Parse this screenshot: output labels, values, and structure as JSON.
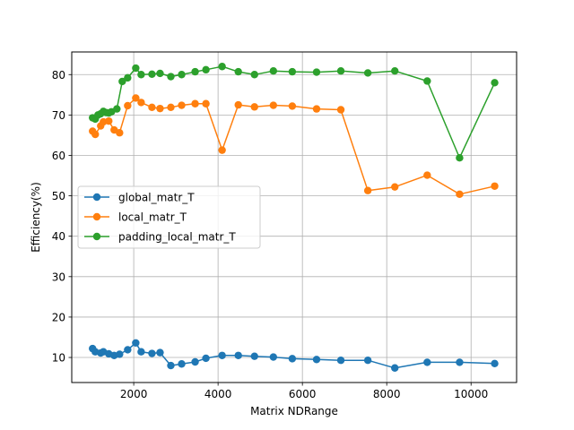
{
  "chart_data": {
    "type": "line",
    "xlabel": "Matrix NDRange",
    "ylabel": "Efficiency(%)",
    "xlim": [
      530,
      11080
    ],
    "ylim": [
      3.8,
      85.6
    ],
    "xticks": [
      2000,
      4000,
      6000,
      8000,
      10000
    ],
    "yticks": [
      10,
      20,
      30,
      40,
      50,
      60,
      70,
      80
    ],
    "grid": true,
    "legend_position": "center-left",
    "x": [
      1024,
      1088,
      1152,
      1216,
      1280,
      1344,
      1408,
      1472,
      1536,
      1600,
      1664,
      1728,
      1856,
      2048,
      2176,
      2432,
      2624,
      2880,
      3136,
      3456,
      3712,
      4096,
      4480,
      4864,
      5312,
      5760,
      6336,
      6912,
      7552,
      8192,
      8960,
      9728,
      10560
    ],
    "series": [
      {
        "name": "global_matr_T",
        "color": "#1f77b4",
        "points": [
          [
            1024,
            12.2
          ],
          [
            1088,
            11.4
          ],
          [
            1216,
            11.1
          ],
          [
            1280,
            11.4
          ],
          [
            1408,
            10.9
          ],
          [
            1536,
            10.5
          ],
          [
            1664,
            10.8
          ],
          [
            1856,
            11.9
          ],
          [
            2048,
            13.6
          ],
          [
            2176,
            11.4
          ],
          [
            2432,
            11.0
          ],
          [
            2624,
            11.2
          ],
          [
            2880,
            8.0
          ],
          [
            3136,
            8.4
          ],
          [
            3456,
            8.9
          ],
          [
            3712,
            9.8
          ],
          [
            4096,
            10.5
          ],
          [
            4480,
            10.5
          ],
          [
            4864,
            10.3
          ],
          [
            5312,
            10.1
          ],
          [
            5760,
            9.7
          ],
          [
            6336,
            9.5
          ],
          [
            6912,
            9.3
          ],
          [
            7552,
            9.3
          ],
          [
            8192,
            7.4
          ],
          [
            8960,
            8.8
          ],
          [
            9728,
            8.8
          ],
          [
            10560,
            8.5
          ]
        ]
      },
      {
        "name": "local_matr_T",
        "color": "#ff7f0e",
        "points": [
          [
            1024,
            66.0
          ],
          [
            1088,
            65.2
          ],
          [
            1216,
            67.3
          ],
          [
            1280,
            68.3
          ],
          [
            1408,
            68.5
          ],
          [
            1536,
            66.3
          ],
          [
            1664,
            65.6
          ],
          [
            1856,
            72.3
          ],
          [
            2048,
            74.2
          ],
          [
            2176,
            73.1
          ],
          [
            2432,
            71.9
          ],
          [
            2624,
            71.6
          ],
          [
            2880,
            71.9
          ],
          [
            3136,
            72.4
          ],
          [
            3456,
            72.8
          ],
          [
            3712,
            72.8
          ],
          [
            4096,
            61.3
          ],
          [
            4480,
            72.5
          ],
          [
            4864,
            72.0
          ],
          [
            5312,
            72.4
          ],
          [
            5760,
            72.2
          ],
          [
            6336,
            71.5
          ],
          [
            6912,
            71.3
          ],
          [
            7552,
            51.3
          ],
          [
            8192,
            52.2
          ],
          [
            8960,
            55.1
          ],
          [
            9728,
            50.4
          ],
          [
            10560,
            52.4
          ]
        ]
      },
      {
        "name": "padding_local_matr_T",
        "color": "#2ca02c",
        "points": [
          [
            1024,
            69.3
          ],
          [
            1088,
            69.0
          ],
          [
            1152,
            70.0
          ],
          [
            1216,
            70.3
          ],
          [
            1280,
            70.9
          ],
          [
            1344,
            70.6
          ],
          [
            1408,
            70.5
          ],
          [
            1472,
            70.8
          ],
          [
            1600,
            71.5
          ],
          [
            1728,
            78.3
          ],
          [
            1856,
            79.2
          ],
          [
            2048,
            81.6
          ],
          [
            2176,
            80.0
          ],
          [
            2432,
            80.1
          ],
          [
            2624,
            80.3
          ],
          [
            2880,
            79.5
          ],
          [
            3136,
            80.0
          ],
          [
            3456,
            80.7
          ],
          [
            3712,
            81.2
          ],
          [
            4096,
            82.0
          ],
          [
            4480,
            80.7
          ],
          [
            4864,
            80.0
          ],
          [
            5312,
            80.9
          ],
          [
            5760,
            80.7
          ],
          [
            6336,
            80.6
          ],
          [
            6912,
            80.9
          ],
          [
            7552,
            80.4
          ],
          [
            8192,
            80.9
          ],
          [
            8960,
            78.4
          ],
          [
            9728,
            59.4
          ],
          [
            10560,
            78.0
          ]
        ]
      }
    ]
  }
}
